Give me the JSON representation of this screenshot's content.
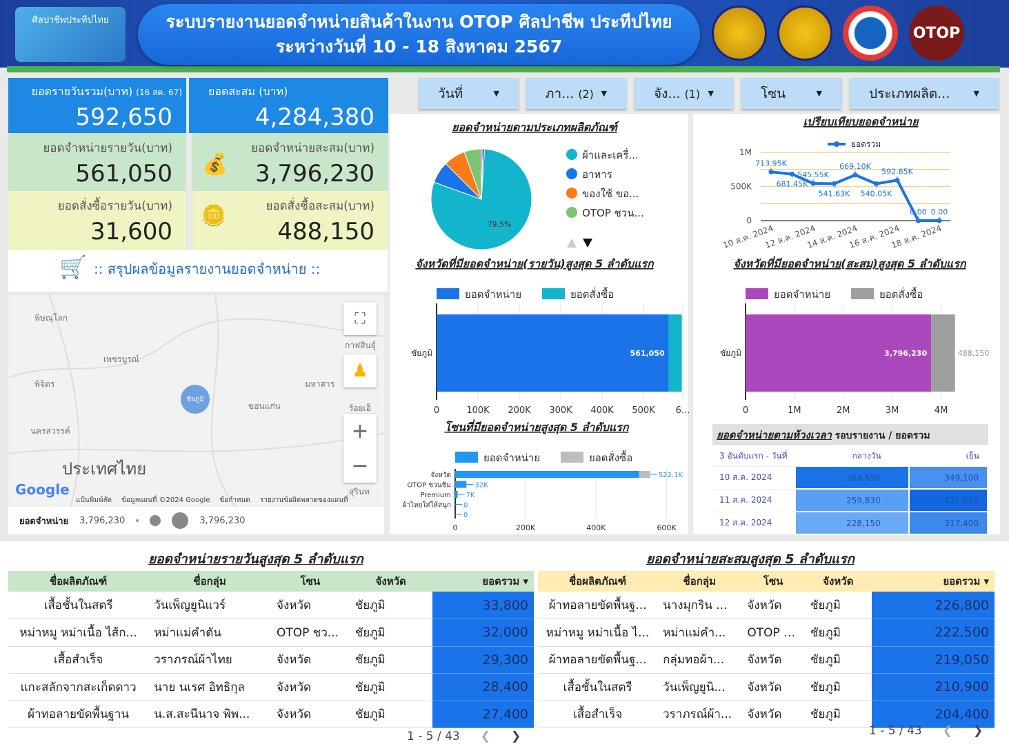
{
  "header": {
    "logo_text": "ศิลปาชีพประทีปไทย",
    "title_line1": "ระบบรายงานยอดจำหน่ายสินค้าในงาน OTOP ศิลปาชีพ ประทีปไทย",
    "title_line2": "ระหว่างวันที่ 10 - 18 สิงหาคม  2567",
    "seals": [
      "seal-1",
      "seal-2",
      "seal-3",
      "OTOP"
    ]
  },
  "kpis": {
    "daily_total": {
      "label": "ยอดรายวันรวม(บาท)",
      "note": "(16 สค. 67)",
      "value": "592,650"
    },
    "cumulative_total": {
      "label": "ยอดสะสม (บาท)",
      "value": "4,284,380"
    },
    "daily_sales": {
      "label": "ยอดจำหน่ายรายวัน(บาท)",
      "value": "561,050"
    },
    "cumulative_sales": {
      "label": "ยอดจำหน่ายสะสม(บาท)",
      "value": "3,796,230"
    },
    "daily_orders": {
      "label": "ยอดสั่งซื้อรายวัน(บาท)",
      "value": "31,600"
    },
    "cumulative_orders": {
      "label": "ยอดสั่งซื้อสะสม(บาท)",
      "value": "488,150"
    }
  },
  "summary_title": ":: สรุปผลข้อมูลรายงานยอดจำหน่าย ::",
  "filters": [
    {
      "label": "วันที่"
    },
    {
      "label": "ภา...",
      "count": "(2)"
    },
    {
      "label": "จัง...",
      "count": "(1)"
    },
    {
      "label": "โซน"
    },
    {
      "label": "ประเภทผลิต..."
    }
  ],
  "map": {
    "places": [
      "พิษณุโลก",
      "เพชรบูรณ์",
      "พิจิตร",
      "นครสวรรค์",
      "ขอนแก่น",
      "มหาสาร",
      "กาฬสินธุ์",
      "ร้อยเอ็",
      "สุรินท"
    ],
    "marker": "ชัยภูมิ",
    "country": "ประเทศไทย",
    "footer": [
      "แป้นพิมพ์ลัด",
      "ข้อมูลแผนที่ ©2024 Google",
      "ข้อกำหนด",
      "รายงานข้อผิดพลาดของแผนที่"
    ],
    "google": "Google",
    "legend_label": "ยอดจำหน่าย",
    "legend_min": "3,796,230",
    "legend_max": "3,796,230"
  },
  "colors": {
    "header": "#1f5fd0",
    "kpi_blue": "#1e88e5",
    "kpi_green": "#c8e6c9",
    "kpi_yellow": "#f0f4c3",
    "sales_blue": "#1a73e8",
    "orders_teal": "#12b5cb",
    "purple": "#ab47bc",
    "gray": "#9e9e9e"
  },
  "chart_data": [
    {
      "type": "pie",
      "title": "ยอดจำหน่ายตามประเภทผลิตภัณฑ์",
      "slices": [
        {
          "name": "ผ้าและเครื่...",
          "value": 79.5,
          "color": "#12b5cb"
        },
        {
          "name": "อาหาร",
          "value": 7.0,
          "color": "#1a73e8"
        },
        {
          "name": "ของใช้ ขอ...",
          "value": 7.0,
          "color": "#fa7b17"
        },
        {
          "name": "OTOP ชวน...",
          "value": 5.5,
          "color": "#7cc576"
        },
        {
          "name": "",
          "value": 0.5,
          "color": "#9334e6"
        },
        {
          "name": "",
          "value": 0.5,
          "color": "#1a237e"
        }
      ],
      "data_label": "79.5%"
    },
    {
      "type": "line",
      "title": "เปรียบเทียบยอดจำหน่าย",
      "legend": "ยอดรวม",
      "x": [
        "10 ส.ค. 2024",
        "11 ส.ค. 2024",
        "12 ส.ค. 2024",
        "13 ส.ค. 2024",
        "14 ส.ค. 2024",
        "15 ส.ค. 2024",
        "16 ส.ค. 2024",
        "17 ส.ค. 2024",
        "18 ส.ค. 2024"
      ],
      "xticks": [
        "10 ส.ค. 2024",
        "12 ส.ค. 2024",
        "14 ส.ค. 2024",
        "16 ส.ค. 2024",
        "18 ส.ค. 2024"
      ],
      "values": [
        713950,
        681450,
        545550,
        541630,
        669100,
        540050,
        592650,
        0,
        0
      ],
      "labels": [
        "713.95K",
        "681.45K",
        "545.55K",
        "541.63K",
        "669.10K",
        "540.05K",
        "592.65K",
        "0.00",
        "0.00"
      ],
      "yticks": [
        "0",
        "500K",
        "1M"
      ],
      "ylim": [
        0,
        1000000
      ]
    },
    {
      "type": "bar",
      "orientation": "horizontal",
      "stacked": true,
      "title": "จังหวัดที่มียอดจำหน่าย(รายวัน)สูงสุด 5 ลำดับแรก",
      "categories": [
        "ชัยภูมิ"
      ],
      "series": [
        {
          "name": "ยอดจำหน่าย",
          "values": [
            561050
          ],
          "color": "#1a73e8",
          "labels": [
            "561,050"
          ]
        },
        {
          "name": "ยอดสั่งซื้อ",
          "values": [
            31600
          ],
          "color": "#12b5cb"
        }
      ],
      "xticks": [
        "0",
        "100K",
        "200K",
        "300K",
        "400K",
        "500K",
        "6..."
      ],
      "xlim": [
        0,
        600000
      ]
    },
    {
      "type": "bar",
      "orientation": "horizontal",
      "stacked": true,
      "title": "จังหวัดที่มียอดจำหน่าย(สะสม)สูงสุด 5 ลำดับแรก",
      "categories": [
        "ชัยภูมิ"
      ],
      "series": [
        {
          "name": "ยอดจำหน่าย",
          "values": [
            3796230
          ],
          "color": "#ab47bc",
          "labels": [
            "3,796,230"
          ]
        },
        {
          "name": "ยอดสั่งซื้อ",
          "values": [
            488150
          ],
          "color": "#9e9e9e",
          "labels": [
            "488,150"
          ]
        }
      ],
      "xticks": [
        "0",
        "1M",
        "2M",
        "3M",
        "4M"
      ],
      "xlim": [
        0,
        4500000
      ]
    },
    {
      "type": "bar",
      "orientation": "horizontal",
      "stacked": true,
      "title": "โซนที่มียอดจำหน่ายสูงสุด 5 ลำดับแรก",
      "categories": [
        "จังหวัด",
        "OTOP ชวนชิม",
        "Premium",
        "ผ้าไทยใส่ให้สนุก",
        ""
      ],
      "series": [
        {
          "name": "ยอดจำหน่าย",
          "values": [
            522100,
            32000,
            7000,
            0,
            0
          ],
          "color": "#2196f3",
          "labels": [
            "522.1K",
            "32K",
            "7K",
            "0",
            "0"
          ]
        },
        {
          "name": "ยอดสั่งซื้อ",
          "values": [
            31600,
            0,
            0,
            0,
            0
          ],
          "color": "#bdbdbd"
        }
      ],
      "xticks": [
        "0",
        "200K",
        "400K",
        "600K"
      ],
      "xlim": [
        0,
        650000
      ]
    }
  ],
  "time_table": {
    "title": "ยอดจำหน่ายตามห้วงเวลา",
    "subtitle": "รอบรายงาน / ยอดรวม",
    "headers": [
      "3 อันดับแรก - วันที่",
      "กลางวัน",
      "เย็น"
    ],
    "rows": [
      [
        "10 ส.ค. 2024",
        "364,850",
        "349,100"
      ],
      [
        "11 ส.ค. 2024",
        "259,830",
        "421,620"
      ],
      [
        "12 ส.ค. 2024",
        "228,150",
        "317,400"
      ]
    ]
  },
  "daily_top": {
    "title": "ยอดจำหน่ายรายวันสูงสุด 5 ลำดับแรก",
    "headers": [
      "ชื่อผลิตภัณฑ์",
      "ชื่อกลุ่ม",
      "โซน",
      "จังหวัด",
      "ยอดรวม ▾"
    ],
    "rows": [
      [
        "เสื้อชั้นในสตรี",
        "วันเพ็ญยูนิแวร์",
        "จังหวัด",
        "ชัยภูมิ",
        "33,800"
      ],
      [
        "หม่าหมู หม่าเนื้อ ไส้ก...",
        "หม่าแม่คำตัน",
        "OTOP ชว...",
        "ชัยภูมิ",
        "32,000"
      ],
      [
        "เสื้อสำเร็จ",
        "วราภรณ์ผ้าไทย",
        "จังหวัด",
        "ชัยภูมิ",
        "29,300"
      ],
      [
        "แกะสลักจากสะเก็ดดาว",
        "นาย นเรศ อิทธิกุล",
        "จังหวัด",
        "ชัยภูมิ",
        "28,400"
      ],
      [
        "ผ้าทอลายขัดพื้นฐาน",
        "น.ส.สะนีนาจ พิพ...",
        "จังหวัด",
        "ชัยภูมิ",
        "27,400"
      ]
    ],
    "pagination": "1 - 5 / 43"
  },
  "cumulative_top": {
    "title": "ยอดจำหน่ายสะสมสูงสุด 5 ลำดับแรก",
    "headers": [
      "ชื่อผลิตภัณฑ์",
      "ชื่อกลุ่ม",
      "โซน",
      "จังหวัด",
      "ยอดรวม ▾"
    ],
    "rows": [
      [
        "ผ้าทอลายขัดพื้นฐ...",
        "นางมุกริน ...",
        "จังหวัด",
        "ชัยภูมิ",
        "226,800"
      ],
      [
        "หม่าหมู หม่าเนื้อ ไ...",
        "หม่าแม่คำ...",
        "OTOP ช...",
        "ชัยภูมิ",
        "222,500"
      ],
      [
        "ผ้าทอลายขัดพื้นฐ...",
        "กลุ่มทอผ้า...",
        "จังหวัด",
        "ชัยภูมิ",
        "219,050"
      ],
      [
        "เสื้อชั้นในสตรี",
        "วันเพ็ญยูนิ...",
        "จังหวัด",
        "ชัยภูมิ",
        "210,900"
      ],
      [
        "เสื้อสำเร็จ",
        "วราภรณ์ผ้า...",
        "จังหวัด",
        "ชัยภูมิ",
        "204,400"
      ]
    ],
    "pagination": "1 - 5 / 43"
  }
}
